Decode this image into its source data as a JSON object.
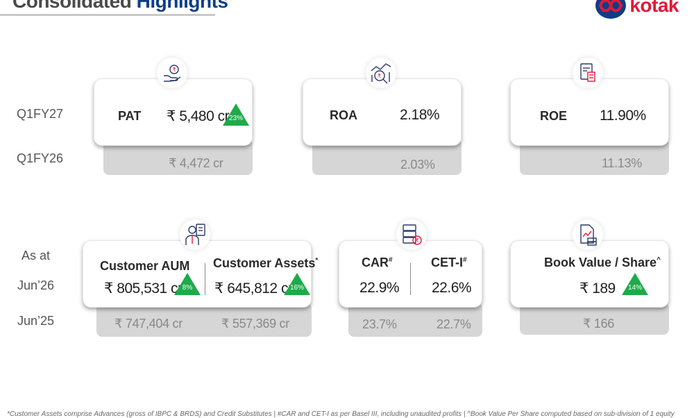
{
  "header": {
    "title_part1": "Consolidated",
    "title_part2": "Highlights",
    "brand": "kotak"
  },
  "row_labels": {
    "current_q": "Q1FY27",
    "prev_q": "Q1FY26",
    "as_at": "As at",
    "current_date": "Jun’26",
    "prev_date": "Jun’25"
  },
  "pat": {
    "label": "PAT",
    "value": "₹ 5,480 cr",
    "growth": "23%",
    "prev": "₹ 4,472 cr",
    "icon": "hand-rupee-coin-icon"
  },
  "roa": {
    "label": "ROA",
    "value": "2.18%",
    "prev": "2.03%",
    "icon": "analytics-magnifier-icon"
  },
  "roe": {
    "label": "ROE",
    "value": "11.90%",
    "prev": "11.13%",
    "icon": "calculator-document-icon"
  },
  "customer": {
    "aum_label": "Customer AUM",
    "aum_value": "₹ 805,531 cr",
    "aum_growth": "8%",
    "aum_prev": "₹ 747,404 cr",
    "assets_label": "Customer Assets",
    "assets_mark": "*",
    "assets_value": "₹ 645,812 cr",
    "assets_growth": "16%",
    "assets_prev": "₹ 557,369 cr",
    "icon": "advisor-icon"
  },
  "capital": {
    "car_label": "CAR",
    "car_mark": "#",
    "car_value": "22.9%",
    "car_prev": "23.7%",
    "cet_label": "CET-I",
    "cet_mark": "#",
    "cet_value": "22.6%",
    "cet_prev": "22.7%",
    "icon": "server-coins-icon"
  },
  "bvps": {
    "label": "Book Value / Share",
    "mark": "^",
    "value": "₹ 189",
    "growth": "14%",
    "prev": "₹ 166",
    "icon": "document-chart-icon"
  },
  "footnote": "*Customer Assets comprise Advances (gross of IBPC & BRDS) and Credit Substitutes | #CAR and CET-I as per Basel III, including unaudited profits | ^Book Value Per Share computed based on sub-division of 1 equity",
  "colors": {
    "up_triangle": "#1faa4a",
    "title_blue": "#0d3e86",
    "brand_red": "#e31837"
  }
}
